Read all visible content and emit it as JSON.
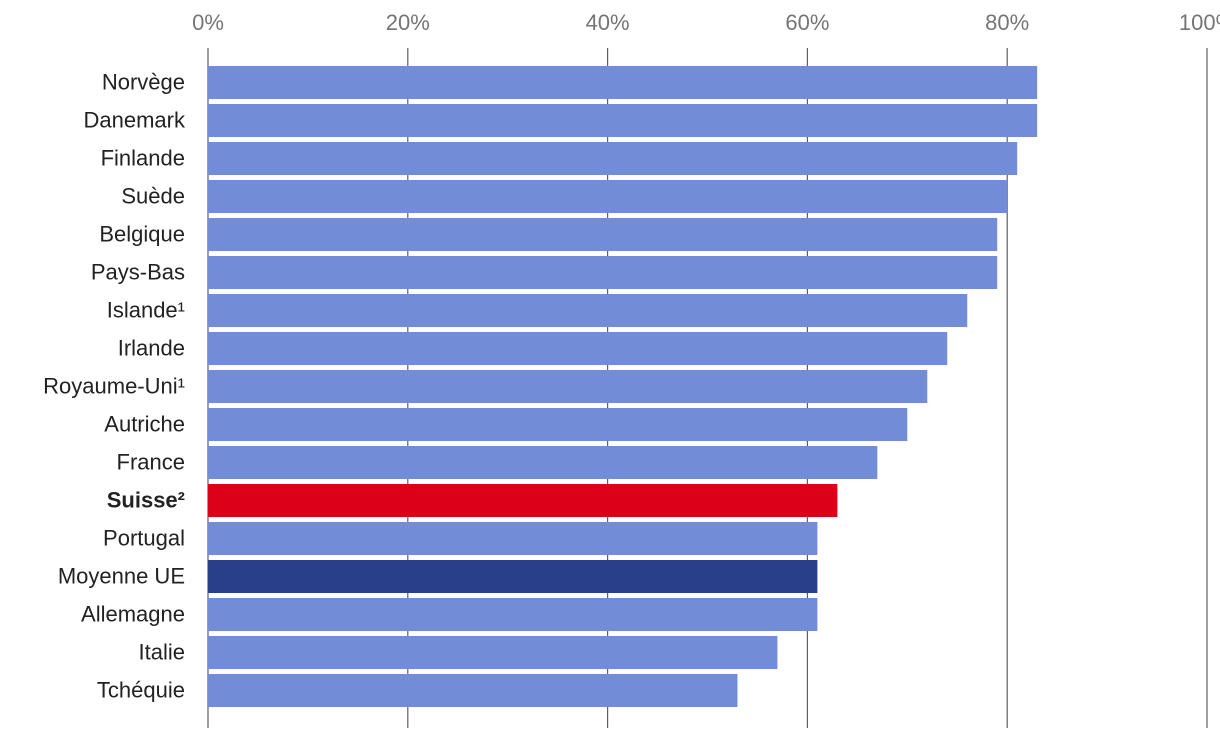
{
  "chart_data": {
    "type": "bar",
    "orientation": "horizontal",
    "title": "",
    "xlabel": "",
    "ylabel": "",
    "xlim": [
      0,
      100
    ],
    "x_ticks": [
      "0%",
      "20%",
      "40%",
      "60%",
      "80%",
      "100%"
    ],
    "x_tick_values": [
      0,
      20,
      40,
      60,
      80,
      100
    ],
    "grid": true,
    "legend": "none",
    "colors": {
      "default": "#728cd8",
      "highlight_switzerland": "#dc0018",
      "eu_average": "#2a3f8a"
    },
    "categories": [
      "Norvège",
      "Danemark",
      "Finlande",
      "Suède",
      "Belgique",
      "Pays-Bas",
      "Islande¹",
      "Irlande",
      "Royaume-Uni¹",
      "Autriche",
      "France",
      "Suisse²",
      "Portugal",
      "Moyenne UE",
      "Allemagne",
      "Italie",
      "Tchéquie"
    ],
    "values": [
      83,
      83,
      81,
      80,
      79,
      79,
      76,
      74,
      72,
      70,
      67,
      63,
      61,
      61,
      61,
      57,
      53
    ],
    "bar_color_keys": [
      "default",
      "default",
      "default",
      "default",
      "default",
      "default",
      "default",
      "default",
      "default",
      "default",
      "default",
      "highlight_switzerland",
      "default",
      "eu_average",
      "default",
      "default",
      "default"
    ],
    "bold_categories": [
      "Suisse²"
    ]
  }
}
